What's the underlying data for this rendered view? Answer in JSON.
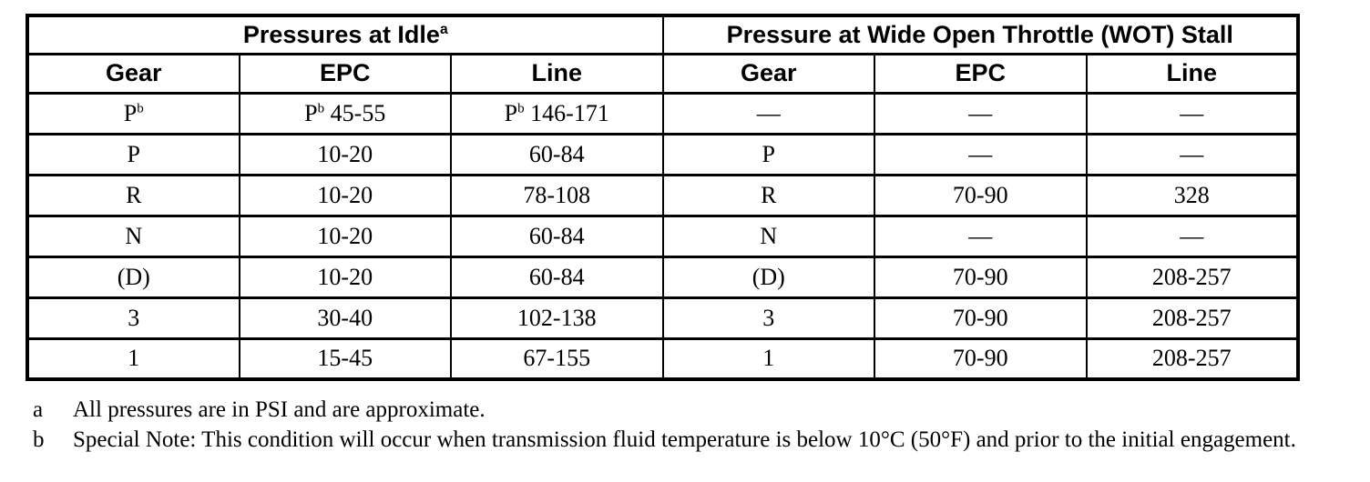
{
  "table": {
    "sections": [
      {
        "title": "Pressures at Idle",
        "title_superscript": "a"
      },
      {
        "title": "Pressure at Wide Open Throttle (WOT) Stall",
        "title_superscript": ""
      }
    ],
    "column_headers": [
      "Gear",
      "EPC",
      "Line",
      "Gear",
      "EPC",
      "Line"
    ],
    "rows": [
      [
        {
          "base": "P",
          "sup": "b"
        },
        {
          "base": "P",
          "sup": "b",
          "rest": " 45-55"
        },
        {
          "base": "P",
          "sup": "b",
          "rest": " 146-171"
        },
        "—",
        "—",
        "—"
      ],
      [
        "P",
        "10-20",
        "60-84",
        "P",
        "—",
        "—"
      ],
      [
        "R",
        "10-20",
        "78-108",
        "R",
        "70-90",
        "328"
      ],
      [
        "N",
        "10-20",
        "60-84",
        "N",
        "—",
        "—"
      ],
      [
        "(D)",
        "10-20",
        "60-84",
        "(D)",
        "70-90",
        "208-257"
      ],
      [
        "3",
        "30-40",
        "102-138",
        "3",
        "70-90",
        "208-257"
      ],
      [
        "1",
        "15-45",
        "67-155",
        "1",
        "70-90",
        "208-257"
      ]
    ]
  },
  "footnotes": [
    {
      "marker": "a",
      "text": "All pressures are in PSI and are approximate."
    },
    {
      "marker": "b",
      "text": "Special Note: This condition will occur when transmission fluid temperature is below 10°C (50°F) and prior to the initial engagement."
    }
  ]
}
